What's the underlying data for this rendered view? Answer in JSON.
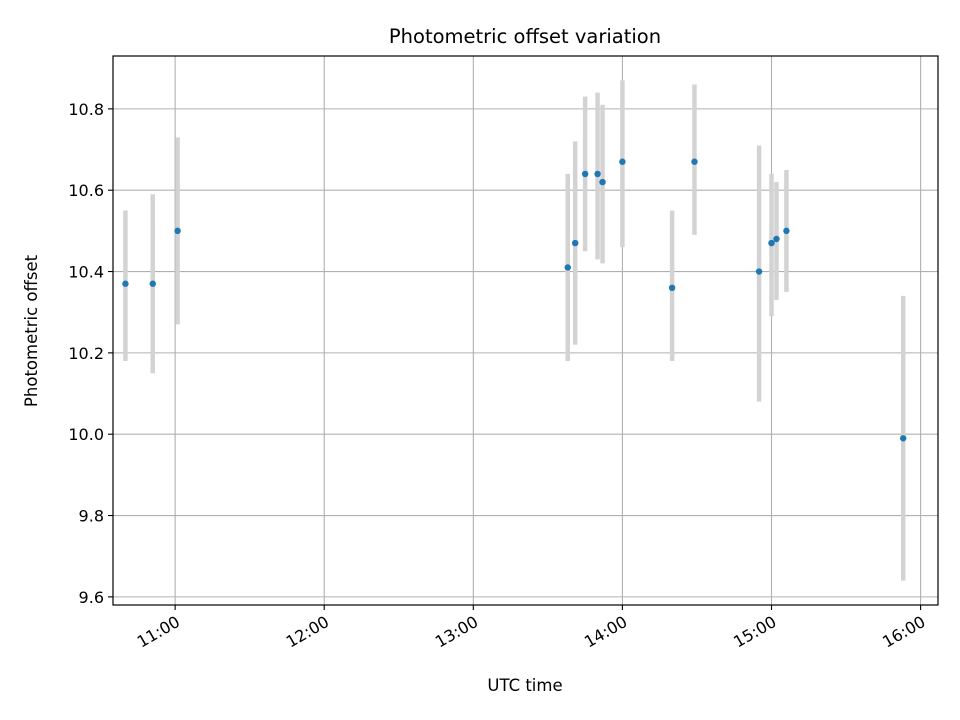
{
  "chart_data": {
    "type": "scatter",
    "title": "Photometric offset variation",
    "xlabel": "UTC time",
    "ylabel": "Photometric offset",
    "xlim": [
      "10:35",
      "16:07"
    ],
    "ylim": [
      9.58,
      10.93
    ],
    "x_ticks": [
      "11:00",
      "12:00",
      "13:00",
      "14:00",
      "15:00",
      "16:00"
    ],
    "y_ticks": [
      "9.6",
      "9.8",
      "10.0",
      "10.2",
      "10.4",
      "10.6",
      "10.8"
    ],
    "grid": true,
    "colors": {
      "point": "#1f77b4",
      "errorbar": "#d3d3d3",
      "grid": "#b0b0b0"
    },
    "points": [
      {
        "x": "10:40",
        "y": 10.37,
        "yerr_low": 10.18,
        "yerr_high": 10.55
      },
      {
        "x": "10:51",
        "y": 10.37,
        "yerr_low": 10.15,
        "yerr_high": 10.59
      },
      {
        "x": "11:01",
        "y": 10.5,
        "yerr_low": 10.27,
        "yerr_high": 10.73
      },
      {
        "x": "13:38",
        "y": 10.41,
        "yerr_low": 10.18,
        "yerr_high": 10.64
      },
      {
        "x": "13:41",
        "y": 10.47,
        "yerr_low": 10.22,
        "yerr_high": 10.72
      },
      {
        "x": "13:45",
        "y": 10.64,
        "yerr_low": 10.45,
        "yerr_high": 10.83
      },
      {
        "x": "13:50",
        "y": 10.64,
        "yerr_low": 10.43,
        "yerr_high": 10.84
      },
      {
        "x": "13:52",
        "y": 10.62,
        "yerr_low": 10.42,
        "yerr_high": 10.81
      },
      {
        "x": "14:00",
        "y": 10.67,
        "yerr_low": 10.46,
        "yerr_high": 10.87
      },
      {
        "x": "14:20",
        "y": 10.36,
        "yerr_low": 10.18,
        "yerr_high": 10.55
      },
      {
        "x": "14:29",
        "y": 10.67,
        "yerr_low": 10.49,
        "yerr_high": 10.86
      },
      {
        "x": "14:55",
        "y": 10.4,
        "yerr_low": 10.08,
        "yerr_high": 10.71
      },
      {
        "x": "15:00",
        "y": 10.47,
        "yerr_low": 10.29,
        "yerr_high": 10.64
      },
      {
        "x": "15:02",
        "y": 10.48,
        "yerr_low": 10.33,
        "yerr_high": 10.62
      },
      {
        "x": "15:06",
        "y": 10.5,
        "yerr_low": 10.35,
        "yerr_high": 10.65
      },
      {
        "x": "15:53",
        "y": 9.99,
        "yerr_low": 9.64,
        "yerr_high": 10.34
      }
    ]
  }
}
